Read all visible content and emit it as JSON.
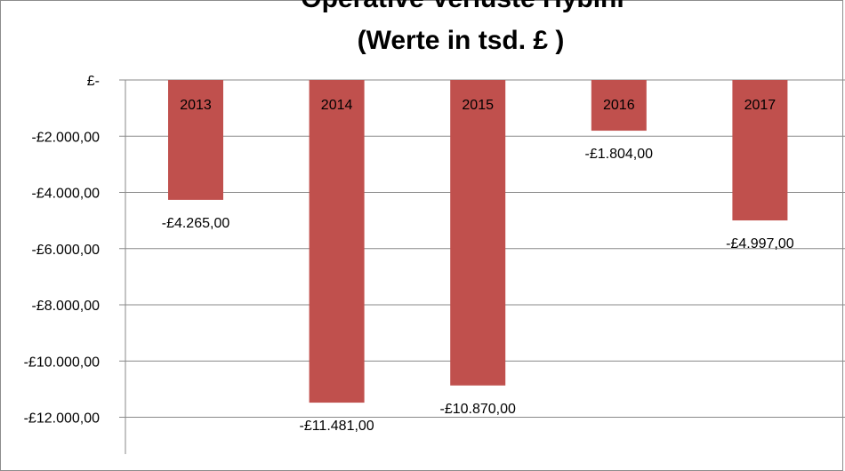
{
  "chart_data": {
    "type": "bar",
    "title": "Operative Verluste Hybini",
    "subtitle": "(Werte in tsd. £ )",
    "categories": [
      "2013",
      "2014",
      "2015",
      "2016",
      "2017"
    ],
    "values": [
      -4265,
      -11481,
      -10870,
      -1804,
      -4997
    ],
    "data_labels": [
      "-£4.265,00",
      "-£11.481,00",
      "-£10.870,00",
      "-£1.804,00",
      "-£4.997,00"
    ],
    "y_ticks": [
      0,
      -2000,
      -4000,
      -6000,
      -8000,
      -10000,
      -12000
    ],
    "y_tick_labels": [
      "£-",
      "-£2.000,00",
      "-£4.000,00",
      "-£6.000,00",
      "-£8.000,00",
      "-£10.000,00",
      "-£12.000,00"
    ],
    "ylim": [
      -12700,
      0
    ],
    "xlabel": "",
    "ylabel": "",
    "grid": true,
    "legend": "none",
    "bar_color": "#c0504d",
    "grid_color": "#898989"
  }
}
